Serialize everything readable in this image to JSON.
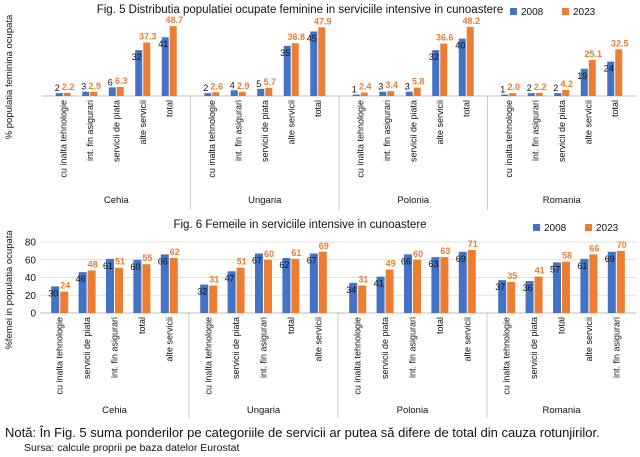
{
  "chart_data": [
    {
      "type": "bar",
      "title": "Fig. 5 Distributia populatiei ocupate feminine  in serviciile intensive in cunoastere",
      "ylabel": "% populatia feminina ocupata",
      "legend": "top-right",
      "colors": {
        "2008": "#4472c4",
        "2023": "#ed7d31"
      },
      "groups": [
        {
          "country": "Cehia",
          "categories": [
            "cu inalta tehnologie",
            "int. fin asigurari",
            "servicii de piata",
            "alte servicii",
            "total"
          ],
          "series": [
            {
              "name": "2008",
              "values": [
                2,
                3,
                6,
                32,
                41
              ]
            },
            {
              "name": "2023",
              "values": [
                2.2,
                2.9,
                6.3,
                37.3,
                48.7
              ]
            }
          ],
          "labels": [
            {
              "2008": "2",
              "2023": "2.2"
            },
            {
              "2008": "3",
              "2023": "2.9"
            },
            {
              "2008": "6",
              "2023": "6.3"
            },
            {
              "2008": "32",
              "2023": "37.3"
            },
            {
              "2008": "41",
              "2023": "48.7"
            }
          ]
        },
        {
          "country": "Ungaria",
          "categories": [
            "cu inalta tehnologie",
            "int. fin asigurari",
            "servicii de piata",
            "alte servicii",
            "total"
          ],
          "series": [
            {
              "name": "2008",
              "values": [
                2,
                4,
                5,
                35,
                45
              ]
            },
            {
              "name": "2023",
              "values": [
                2.6,
                2.9,
                5.7,
                36.8,
                47.9
              ]
            }
          ],
          "labels": [
            {
              "2008": "2",
              "2023": "2.6"
            },
            {
              "2008": "4",
              "2023": "2.9"
            },
            {
              "2008": "5",
              "2023": "5.7"
            },
            {
              "2008": "35",
              "2023": "36.8"
            },
            {
              "2008": "45",
              "2023": "47.9"
            }
          ]
        },
        {
          "country": "Polonia",
          "categories": [
            "cu inalta tehnologie",
            "int. fin asigurari",
            "servicii de piata",
            "alte servicii",
            "total"
          ],
          "series": [
            {
              "name": "2008",
              "values": [
                1,
                3,
                3,
                32,
                40
              ]
            },
            {
              "name": "2023",
              "values": [
                2.4,
                3.4,
                5.8,
                36.6,
                48.2
              ]
            }
          ],
          "labels": [
            {
              "2008": "1",
              "2023": "2.4"
            },
            {
              "2008": "3",
              "2023": "3.4"
            },
            {
              "2008": "3",
              "2023": "5.8"
            },
            {
              "2008": "32",
              "2023": "36.6"
            },
            {
              "2008": "40",
              "2023": "48.2"
            }
          ]
        },
        {
          "country": "Romania",
          "categories": [
            "cu inalta tehnologie",
            "int. fin asigurari",
            "servicii de piata",
            "alte servicii",
            "total"
          ],
          "series": [
            {
              "name": "2008",
              "values": [
                1,
                2,
                2,
                19,
                24
              ]
            },
            {
              "name": "2023",
              "values": [
                2.0,
                2.2,
                4.2,
                25.1,
                32.5
              ]
            }
          ],
          "labels": [
            {
              "2008": "1",
              "2023": "2.0"
            },
            {
              "2008": "2",
              "2023": "2.2"
            },
            {
              "2008": "2",
              "2023": "4.2"
            },
            {
              "2008": "19",
              "2023": "25.1"
            },
            {
              "2008": "24",
              "2023": "32.5"
            }
          ]
        }
      ]
    },
    {
      "type": "bar",
      "title": "Fig. 6 Femeile in serviciile intensive in cunoastere",
      "ylabel": "%femei in populatia ocupata",
      "ylim": [
        0,
        80
      ],
      "yticks": [
        0,
        20,
        40,
        60,
        80
      ],
      "grid": true,
      "legend": "top-right",
      "colors": {
        "2008": "#4472c4",
        "2023": "#ed7d31"
      },
      "groups": [
        {
          "country": "Cehia",
          "categories": [
            "cu inalta tehnologie",
            "servicii de piata",
            "int. fin asigurari",
            "total",
            "alte servicii"
          ],
          "series": [
            {
              "name": "2008",
              "values": [
                30,
                46,
                61,
                60,
                66
              ]
            },
            {
              "name": "2023",
              "values": [
                24,
                48,
                51,
                55,
                62
              ]
            }
          ]
        },
        {
          "country": "Ungaria",
          "categories": [
            "cu inalta tehnologie",
            "servicii de piata",
            "int. fin asigurari",
            "total",
            "alte servicii"
          ],
          "series": [
            {
              "name": "2008",
              "values": [
                32,
                47,
                67,
                62,
                67
              ]
            },
            {
              "name": "2023",
              "values": [
                31,
                51,
                60,
                61,
                69
              ]
            }
          ]
        },
        {
          "country": "Polonia",
          "categories": [
            "cu inalta tehnologie",
            "servicii de piata",
            "int. fin asigurari",
            "total",
            "alte servicii"
          ],
          "series": [
            {
              "name": "2008",
              "values": [
                34,
                41,
                66,
                63,
                69
              ]
            },
            {
              "name": "2023",
              "values": [
                31,
                49,
                60,
                63,
                71
              ]
            }
          ]
        },
        {
          "country": "Romania",
          "categories": [
            "cu inalta tehnologie",
            "servicii de piata",
            "total",
            "alte servicii",
            "int. fin asigurari"
          ],
          "series": [
            {
              "name": "2008",
              "values": [
                37,
                36,
                57,
                61,
                69
              ]
            },
            {
              "name": "2023",
              "values": [
                35,
                41,
                58,
                66,
                70
              ]
            }
          ]
        }
      ]
    }
  ],
  "note": "Notă: În Fig. 5 suma ponderilor pe categoriile de servicii ar putea să difere de total din cauza rotunjirilor.",
  "source": "Sursa: calcule proprii pe baza datelor Eurostat"
}
